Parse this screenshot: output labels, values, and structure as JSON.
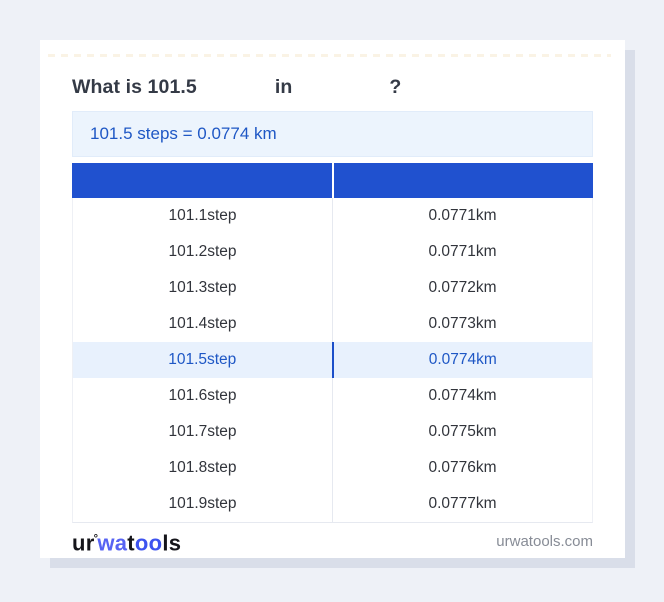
{
  "title": {
    "question_prefix": "What is 101.5",
    "connector": "in",
    "question_mark": "?"
  },
  "result_banner": {
    "text": "101.5 steps = 0.0774 km"
  },
  "conversion_table": {
    "columns": [
      {
        "label": ""
      },
      {
        "label": ""
      }
    ],
    "rows": [
      {
        "steps": "101.1step",
        "km": "0.0771km",
        "highlighted": false
      },
      {
        "steps": "101.2step",
        "km": "0.0771km",
        "highlighted": false
      },
      {
        "steps": "101.3step",
        "km": "0.0772km",
        "highlighted": false
      },
      {
        "steps": "101.4step",
        "km": "0.0773km",
        "highlighted": false
      },
      {
        "steps": "101.5step",
        "km": "0.0774km",
        "highlighted": true
      },
      {
        "steps": "101.6step",
        "km": "0.0774km",
        "highlighted": false
      },
      {
        "steps": "101.7step",
        "km": "0.0775km",
        "highlighted": false
      },
      {
        "steps": "101.8step",
        "km": "0.0776km",
        "highlighted": false
      },
      {
        "steps": "101.9step",
        "km": "0.0777km",
        "highlighted": false
      }
    ]
  },
  "footer": {
    "logo": {
      "seg1": "ur",
      "degree": "°",
      "seg2": "wa",
      "seg3": "t",
      "seg4": "oo",
      "seg5": "ls"
    },
    "website": "urwatools.com"
  },
  "colors": {
    "page_bg": "#eef1f7",
    "card_shadow": "#d9dee9",
    "table_header_blue": "#2051cf",
    "result_banner_bg": "#ecf4fd",
    "result_text_blue": "#1e57c5",
    "highlight_row_bg": "#e8f1fd",
    "highlight_divider_blue": "#1c4fc9",
    "logo_blue_wa": "#5763f3",
    "logo_blue_oo": "#3d53ef"
  }
}
